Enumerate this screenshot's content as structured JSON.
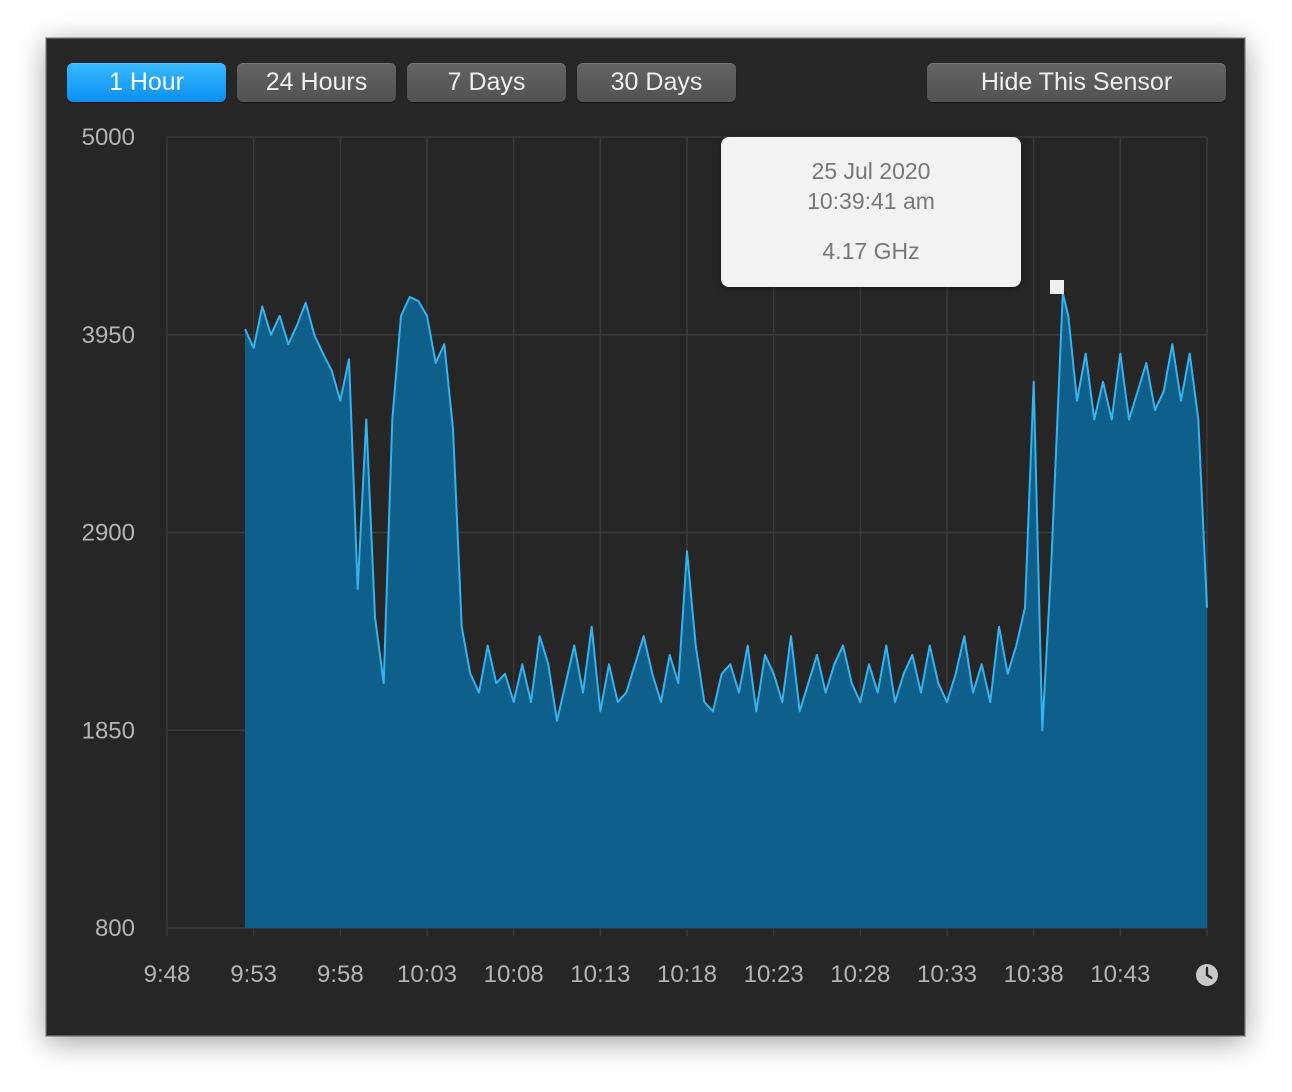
{
  "toolbar": {
    "buttons": [
      {
        "label": "1 Hour",
        "active": true
      },
      {
        "label": "24 Hours",
        "active": false
      },
      {
        "label": "7 Days",
        "active": false
      },
      {
        "label": "30 Days",
        "active": false
      }
    ],
    "hide_label": "Hide This Sensor"
  },
  "tooltip": {
    "date": "25 Jul 2020",
    "time": "10:39:41 am",
    "value": "4.17 GHz"
  },
  "colors": {
    "accent": "#1ba7f5",
    "line": "#33b3f0",
    "fill": "#0e5f89",
    "grid": "#3a3a3a"
  },
  "icons": {
    "time": "clock-icon"
  },
  "chart_data": {
    "type": "area",
    "title": "",
    "xlabel": "",
    "ylabel": "",
    "unit": "GHz",
    "ylim": [
      800,
      5000
    ],
    "xlim": [
      "9:48",
      "10:48"
    ],
    "y_ticks": [
      "5000",
      "3950",
      "2900",
      "1850",
      "800"
    ],
    "x_ticks": [
      "9:48",
      "9:53",
      "9:58",
      "10:03",
      "10:08",
      "10:13",
      "10:18",
      "10:23",
      "10:28",
      "10:33",
      "10:38",
      "10:43"
    ],
    "grid": true,
    "legend": "none",
    "series": [
      {
        "x": [
          "9:52:30",
          "9:53:00",
          "9:53:30",
          "9:54:00",
          "9:54:30",
          "9:55:00",
          "9:55:30",
          "9:56:00",
          "9:56:30",
          "9:57:00",
          "9:57:30",
          "9:58:00",
          "9:58:30",
          "9:59:00",
          "9:59:30",
          "10:00:00",
          "10:00:30",
          "10:01:00",
          "10:01:30",
          "10:02:00",
          "10:02:30",
          "10:03:00",
          "10:03:30",
          "10:04:00",
          "10:04:30",
          "10:05:00",
          "10:05:30",
          "10:06:00",
          "10:06:30",
          "10:07:00",
          "10:07:30",
          "10:08:00",
          "10:08:30",
          "10:09:00",
          "10:09:30",
          "10:10:00",
          "10:10:30",
          "10:11:00",
          "10:11:30",
          "10:12:00",
          "10:12:30",
          "10:13:00",
          "10:13:30",
          "10:14:00",
          "10:14:30",
          "10:15:00",
          "10:15:30",
          "10:16:00",
          "10:16:30",
          "10:17:00",
          "10:17:30",
          "10:18:00",
          "10:18:30",
          "10:19:00",
          "10:19:30",
          "10:20:00",
          "10:20:30",
          "10:21:00",
          "10:21:30",
          "10:22:00",
          "10:22:30",
          "10:23:00",
          "10:23:30",
          "10:24:00",
          "10:24:30",
          "10:25:00",
          "10:25:30",
          "10:26:00",
          "10:26:30",
          "10:27:00",
          "10:27:30",
          "10:28:00",
          "10:28:30",
          "10:29:00",
          "10:29:30",
          "10:30:00",
          "10:30:30",
          "10:31:00",
          "10:31:30",
          "10:32:00",
          "10:32:30",
          "10:33:00",
          "10:33:30",
          "10:34:00",
          "10:34:30",
          "10:35:00",
          "10:35:30",
          "10:36:00",
          "10:36:30",
          "10:37:00",
          "10:37:30",
          "10:38:00",
          "10:38:30",
          "10:39:00",
          "10:39:41",
          "10:40:00",
          "10:40:30",
          "10:41:00",
          "10:41:30",
          "10:42:00",
          "10:42:30",
          "10:43:00",
          "10:43:30",
          "10:44:00",
          "10:44:30",
          "10:45:00",
          "10:45:30",
          "10:46:00",
          "10:46:30",
          "10:47:00",
          "10:47:30",
          "10:48:00"
        ],
        "values": [
          3980,
          3880,
          4100,
          3950,
          4050,
          3900,
          4000,
          4120,
          3950,
          3850,
          3760,
          3600,
          3820,
          2600,
          3500,
          2450,
          2100,
          3500,
          4050,
          4150,
          4130,
          4050,
          3800,
          3900,
          3450,
          2400,
          2150,
          2050,
          2300,
          2100,
          2150,
          2000,
          2200,
          2000,
          2350,
          2200,
          1900,
          2100,
          2300,
          2050,
          2400,
          1950,
          2200,
          2000,
          2050,
          2200,
          2350,
          2150,
          2000,
          2250,
          2100,
          2800,
          2300,
          2000,
          1950,
          2150,
          2200,
          2050,
          2300,
          1950,
          2250,
          2150,
          2000,
          2350,
          1950,
          2100,
          2250,
          2050,
          2200,
          2300,
          2100,
          2000,
          2200,
          2050,
          2300,
          2000,
          2150,
          2250,
          2050,
          2300,
          2100,
          2000,
          2150,
          2350,
          2050,
          2200,
          2000,
          2400,
          2150,
          2300,
          2500,
          3700,
          1850,
          2700,
          4170,
          4050,
          3600,
          3850,
          3500,
          3700,
          3500,
          3850,
          3500,
          3650,
          3800,
          3550,
          3650,
          3900,
          3600,
          3850,
          3500,
          2500
        ]
      }
    ]
  }
}
